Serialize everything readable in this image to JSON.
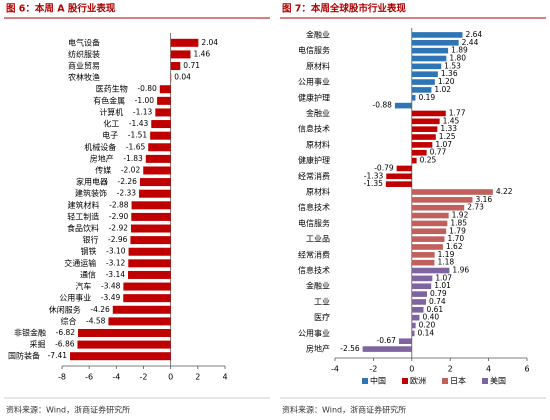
{
  "chart_data": [
    {
      "type": "hbar",
      "title": "图 6：本周 A 股行业表现",
      "note": "资料来源：Wind，浙商证券研究所",
      "color": "#c00000",
      "categories": [
        "电气设备",
        "纺织服装",
        "商业贸易",
        "农林牧渔",
        "医药生物",
        "有色金属",
        "计算机",
        "化工",
        "电子",
        "机械设备",
        "房地产",
        "传媒",
        "家用电器",
        "建筑装饰",
        "建筑材料",
        "轻工制造",
        "食品饮料",
        "银行",
        "钢铁",
        "交通运输",
        "通信",
        "汽车",
        "公用事业",
        "休闲服务",
        "综合",
        "非银金融",
        "采掘",
        "国防装备"
      ],
      "values": [
        2.04,
        1.46,
        0.71,
        0.04,
        -0.8,
        -1,
        -1.13,
        -1.43,
        -1.51,
        -1.65,
        -1.83,
        -2.02,
        -2.26,
        -2.33,
        -2.88,
        -2.9,
        -2.92,
        -2.96,
        -3.1,
        -3.12,
        -3.14,
        -3.48,
        -3.49,
        -4.26,
        -4.58,
        -6.82,
        -6.86,
        -7.41
      ],
      "value_labels": [
        "2.04",
        "1.46",
        "0.71",
        "0.04",
        "-0.80",
        "-1.00",
        "-1.13",
        "-1.43",
        "-1.51",
        "-1.65",
        "-1.83",
        "-2.02",
        "-2.26",
        "-2.33",
        "-2.88",
        "-2.90",
        "-2.92",
        "-2.96",
        "-3.10",
        "-3.12",
        "-3.14",
        "-3.48",
        "-3.49",
        "-4.26",
        "-4.58",
        "-6.82",
        "-6.86",
        "-7.41"
      ],
      "xlim": [
        -8,
        4
      ],
      "xticks": [
        -8,
        -6,
        -4,
        -2,
        0,
        2,
        4
      ]
    },
    {
      "type": "hbar-groups",
      "title": "图 7：本周全球股市行业表现",
      "note": "资料来源：Wind，浙商证券研究所",
      "legend": "bottom",
      "series": [
        {
          "name": "中国",
          "color": "#2e75b6",
          "categories": [
            "金融业",
            null,
            "电信服务",
            null,
            "原材料",
            null,
            "公用事业",
            null,
            "健康护理",
            null
          ],
          "values": [
            2.64,
            2.44,
            1.89,
            1.8,
            1.53,
            1.36,
            1.2,
            1.02,
            0.19,
            -0.88
          ],
          "value_labels": [
            "2.64",
            "2.44",
            "1.89",
            "1.80",
            "1.53",
            "1.36",
            "1.20",
            "1.02",
            "0.19",
            "-0.88"
          ]
        },
        {
          "name": "欧洲",
          "color": "#c00000",
          "categories": [
            "金融业",
            null,
            "信息技术",
            null,
            "原材料",
            null,
            "健康护理",
            null,
            "经常消费",
            null
          ],
          "values": [
            1.77,
            1.45,
            1.33,
            1.25,
            1.07,
            0.77,
            0.25,
            -0.79,
            -1.33,
            -1.35
          ],
          "value_labels": [
            "1.77",
            "1.45",
            "1.33",
            "1.25",
            "1.07",
            "0.77",
            "0.25",
            "-0.79",
            "-1.33",
            "-1.35"
          ]
        },
        {
          "name": "日本",
          "color": "#c0605c",
          "categories": [
            "原材料",
            null,
            "信息技术",
            null,
            "电信服务",
            null,
            "工业品",
            null,
            "经常消费",
            null
          ],
          "values": [
            4.22,
            3.16,
            2.73,
            1.92,
            1.85,
            1.79,
            1.7,
            1.62,
            1.19,
            1.18
          ],
          "value_labels": [
            "4.22",
            "3.16",
            "2.73",
            "1.92",
            "1.85",
            "1.79",
            "1.70",
            "1.62",
            "1.19",
            "1.18"
          ]
        },
        {
          "name": "美国",
          "color": "#8064a2",
          "categories": [
            "信息技术",
            null,
            "金融业",
            null,
            "工业",
            null,
            "医疗",
            null,
            "公用事业",
            null,
            "房地产"
          ],
          "values": [
            1.96,
            1.07,
            1.01,
            0.79,
            0.74,
            0.61,
            0.4,
            0.2,
            0.14,
            -0.67,
            -2.56
          ],
          "value_labels": [
            "1.96",
            "1.07",
            "1.01",
            "0.79",
            "0.74",
            "0.61",
            "0.40",
            "0.20",
            "0.14",
            "-0.67",
            "-2.56"
          ]
        }
      ],
      "xlim": [
        -4,
        6
      ],
      "xticks": [
        -4,
        -2,
        0,
        2,
        4,
        6
      ]
    }
  ]
}
